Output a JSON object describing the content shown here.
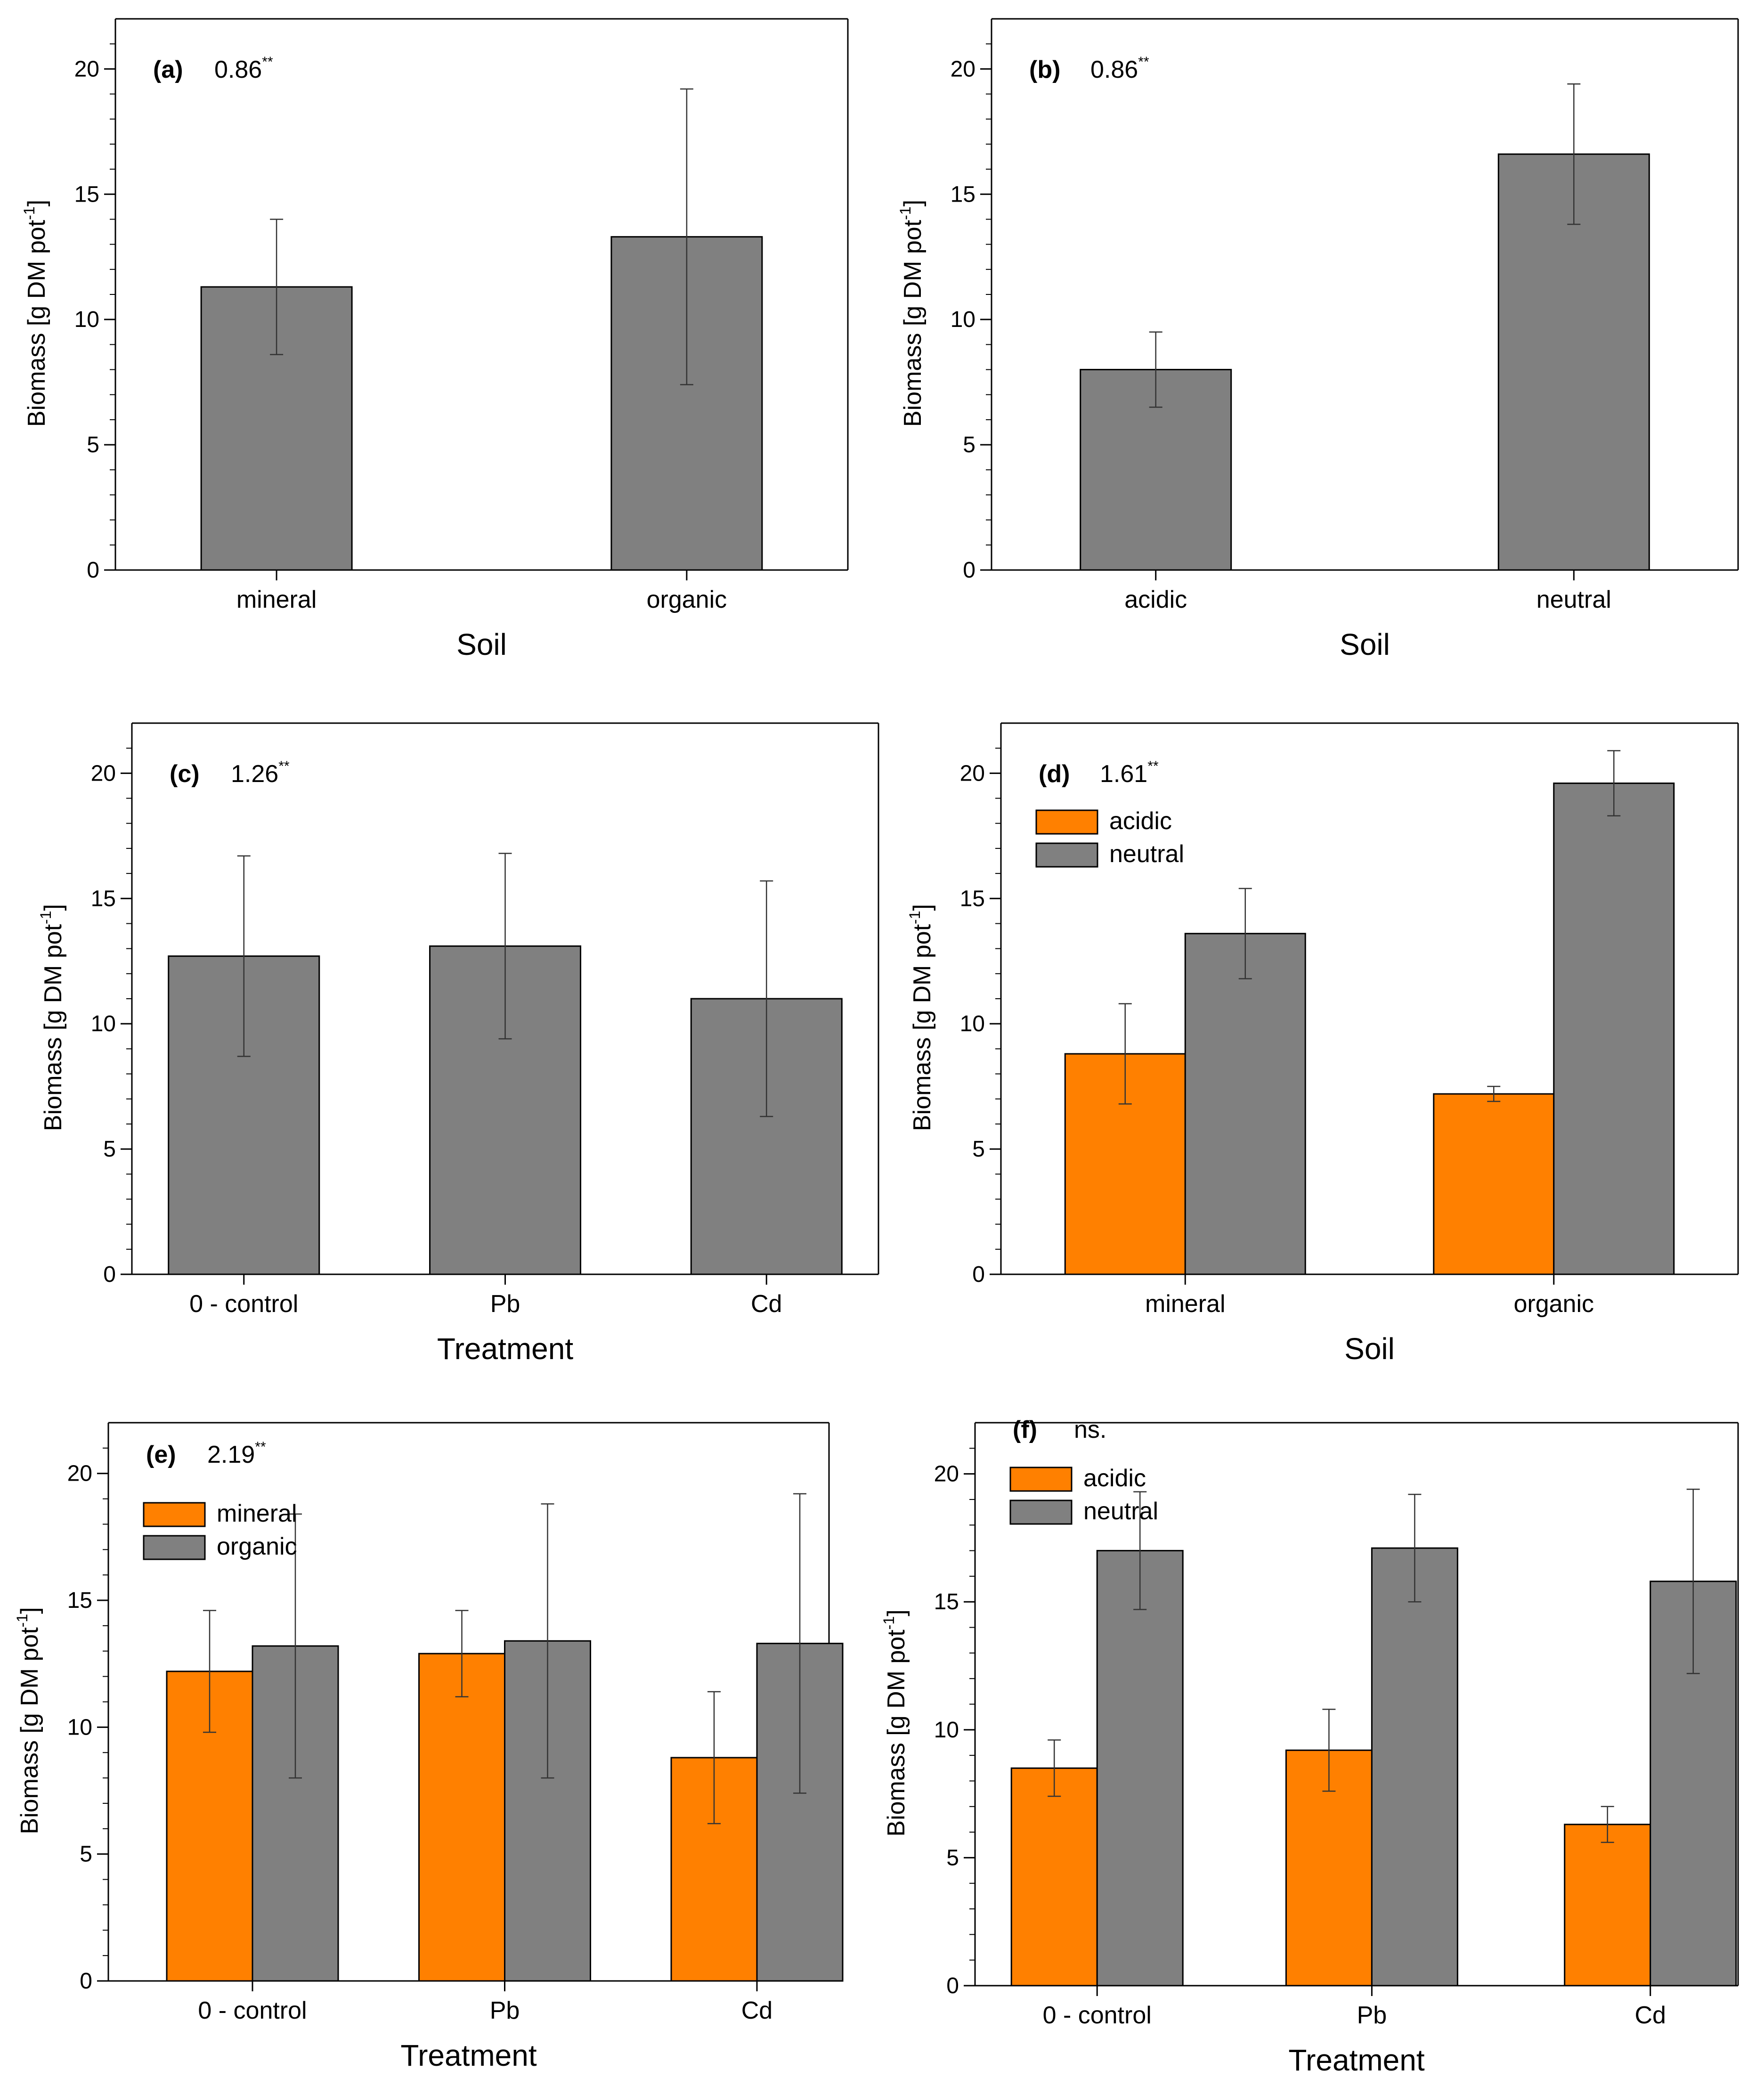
{
  "colors": {
    "orange": "#FF8000",
    "gray": "#808080",
    "axis": "#000000",
    "error": "#333333"
  },
  "chart_data": [
    {
      "type": "bar",
      "tag": "(a)",
      "stat": "0.86",
      "sup": "**",
      "xlabel": "Soil",
      "ylabel_main": "Biomass [g DM pot",
      "ylabel_sup": "-1",
      "ylabel_end": "]",
      "ylim": [
        0,
        22
      ],
      "yticks": [
        0,
        5,
        10,
        15,
        20
      ],
      "categories": [
        "mineral",
        "organic"
      ],
      "series": [
        {
          "name": "",
          "color": "gray",
          "values": [
            11.3,
            13.3
          ],
          "errors": [
            2.7,
            5.9
          ]
        }
      ],
      "legend": []
    },
    {
      "type": "bar",
      "tag": "(b)",
      "stat": "0.86",
      "sup": "**",
      "xlabel": "Soil",
      "ylabel_main": "Biomass [g DM pot",
      "ylabel_sup": "-1",
      "ylabel_end": "]",
      "ylim": [
        0,
        22
      ],
      "yticks": [
        0,
        5,
        10,
        15,
        20
      ],
      "categories": [
        "acidic",
        "neutral"
      ],
      "series": [
        {
          "name": "",
          "color": "gray",
          "values": [
            8.0,
            16.6
          ],
          "errors": [
            1.5,
            2.8
          ]
        }
      ],
      "legend": []
    },
    {
      "type": "bar",
      "tag": "(c)",
      "stat": "1.26",
      "sup": "**",
      "xlabel": "Treatment",
      "ylabel_main": "Biomass [g DM pot",
      "ylabel_sup": "-1",
      "ylabel_end": "]",
      "ylim": [
        0,
        22
      ],
      "yticks": [
        0,
        5,
        10,
        15,
        20
      ],
      "categories": [
        "0 - control",
        "Pb",
        "Cd"
      ],
      "series": [
        {
          "name": "",
          "color": "gray",
          "values": [
            12.7,
            13.1,
            11.0
          ],
          "errors": [
            4.0,
            3.7,
            4.7
          ]
        }
      ],
      "legend": []
    },
    {
      "type": "bar",
      "tag": "(d)",
      "stat": "1.61",
      "sup": "**",
      "xlabel": "Soil",
      "ylabel_main": "Biomass [g DM pot",
      "ylabel_sup": "-1",
      "ylabel_end": "]",
      "ylim": [
        0,
        22
      ],
      "yticks": [
        0,
        5,
        10,
        15,
        20
      ],
      "categories": [
        "mineral",
        "organic"
      ],
      "series": [
        {
          "name": "acidic",
          "color": "orange",
          "values": [
            8.8,
            7.2
          ],
          "errors": [
            2.0,
            0.3
          ]
        },
        {
          "name": "neutral",
          "color": "gray",
          "values": [
            13.6,
            19.6
          ],
          "errors": [
            1.8,
            1.3
          ]
        }
      ],
      "legend": [
        "acidic",
        "neutral"
      ]
    },
    {
      "type": "bar",
      "tag": "(e)",
      "stat": "2.19",
      "sup": "**",
      "xlabel": "Treatment",
      "ylabel_main": "Biomass [g DM pot",
      "ylabel_sup": "-1",
      "ylabel_end": "]",
      "ylim": [
        0,
        22
      ],
      "yticks": [
        0,
        5,
        10,
        15,
        20
      ],
      "categories": [
        "0 - control",
        "Pb",
        "Cd"
      ],
      "series": [
        {
          "name": "mineral",
          "color": "orange",
          "values": [
            12.2,
            12.9,
            8.8
          ],
          "errors": [
            2.4,
            1.7,
            2.6
          ]
        },
        {
          "name": "organic",
          "color": "gray",
          "values": [
            13.2,
            13.4,
            13.3
          ],
          "errors": [
            5.2,
            5.4,
            5.9
          ]
        }
      ],
      "legend": [
        "mineral",
        "organic"
      ]
    },
    {
      "type": "bar",
      "tag": "(f)",
      "stat": "ns.",
      "sup": "",
      "xlabel": "Treatment",
      "ylabel_main": "Biomass [g DM pot",
      "ylabel_sup": "-1",
      "ylabel_end": "]",
      "ylim": [
        0,
        22
      ],
      "yticks": [
        0,
        5,
        10,
        15,
        20
      ],
      "categories": [
        "0 - control",
        "Pb",
        "Cd"
      ],
      "series": [
        {
          "name": "acidic",
          "color": "orange",
          "values": [
            8.5,
            9.2,
            6.3
          ],
          "errors": [
            1.1,
            1.6,
            0.7
          ]
        },
        {
          "name": "neutral",
          "color": "gray",
          "values": [
            17.0,
            17.1,
            15.8
          ],
          "errors": [
            2.3,
            2.1,
            3.6
          ]
        }
      ],
      "legend": [
        "acidic",
        "neutral"
      ]
    }
  ]
}
